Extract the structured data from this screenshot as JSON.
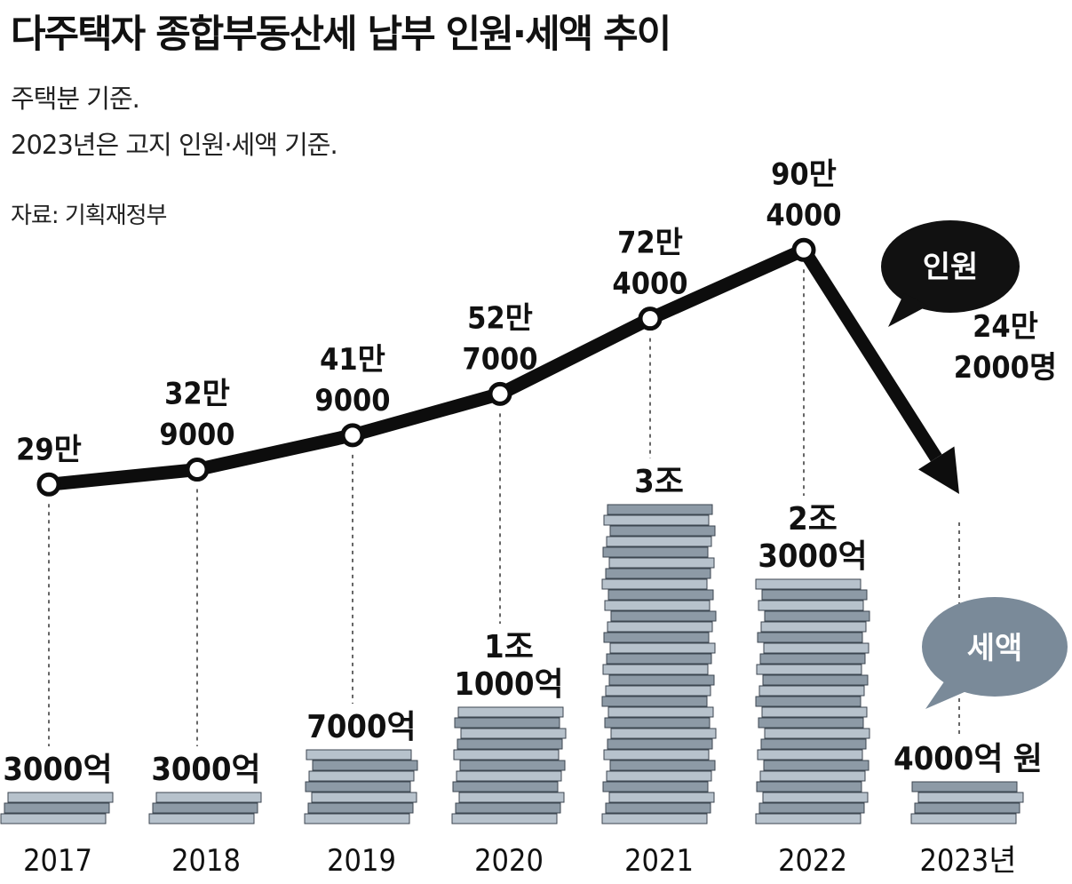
{
  "title": "다주택자 종합부동산세 납부 인원·세액 추이",
  "notes": [
    "주택분 기준.",
    "2023년은 고지 인원·세액 기준."
  ],
  "source": "자료: 기획재정부",
  "legend": {
    "people_label": "인원",
    "amount_label": "세액",
    "people_color": "#111111",
    "amount_color": "#7a8a99"
  },
  "chart_data": {
    "type": "line",
    "categories": [
      "2017",
      "2018",
      "2019",
      "2020",
      "2021",
      "2022",
      "2023년"
    ],
    "series": [
      {
        "name": "인원",
        "unit": "명",
        "values": [
          290000,
          329000,
          419000,
          527000,
          724000,
          904000,
          242000
        ]
      },
      {
        "name": "세액",
        "unit": "원",
        "values": [
          300000000000,
          300000000000,
          700000000000,
          1100000000000,
          3000000000000,
          2300000000000,
          400000000000
        ]
      }
    ],
    "people_labels": [
      [
        "29만"
      ],
      [
        "32만",
        "9000"
      ],
      [
        "41만",
        "9000"
      ],
      [
        "52만",
        "7000"
      ],
      [
        "72만",
        "4000"
      ],
      [
        "90만",
        "4000"
      ],
      [
        "24만",
        "2000명"
      ]
    ],
    "amount_labels": [
      [
        "3000억"
      ],
      [
        "3000억"
      ],
      [
        "7000억"
      ],
      [
        "1조",
        "1000억"
      ],
      [
        "3조"
      ],
      [
        "2조",
        "3000억"
      ],
      [
        "4000억 원"
      ]
    ],
    "people_ylim": [
      0,
      1000000
    ],
    "grid": false
  }
}
